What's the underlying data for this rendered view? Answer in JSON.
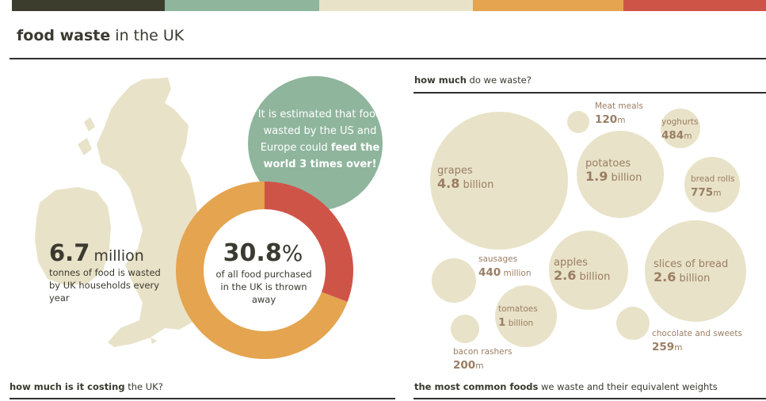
{
  "palette": {
    "top_bar": [
      "#3d3d2d",
      "#8fb59d",
      "#e8e2c8",
      "#e5a44f",
      "#cf5448"
    ],
    "map": "#e8e2c8",
    "bubble_green": "#8fb59d",
    "donut_orange": "#e5a44f",
    "donut_red": "#cf5448",
    "food_bubble": "#e8e2c8",
    "food_text": "#9a7e63"
  },
  "header": {
    "title_bold": "food waste",
    "title_rest": " in the UK"
  },
  "uk_stat": {
    "number": "6.7",
    "unit": "million",
    "text": "tonnes of food is wasted by UK households every year"
  },
  "us_europe_bubble": {
    "text_plain": "It is estimated that food wasted by the US and Europe could ",
    "text_bold": "feed the world 3 times over!"
  },
  "donut": {
    "percent_value": 30.8,
    "percent_number": "30.8",
    "percent_symbol": "%",
    "text": "of all food purchased in the UK is thrown away"
  },
  "how_much_header": {
    "bold": "how much",
    "rest": " do we waste?"
  },
  "foods": [
    {
      "name": "grapes",
      "value": "4.8",
      "unit": " billion"
    },
    {
      "name": "Meat meals",
      "value": "120",
      "unit": "m"
    },
    {
      "name": "potatoes",
      "value": "1.9",
      "unit": " billion"
    },
    {
      "name": "yoghurts",
      "value": "484",
      "unit": "m"
    },
    {
      "name": "bread rolls",
      "value": "775",
      "unit": "m"
    },
    {
      "name": "sausages",
      "value": "440",
      "unit": " million"
    },
    {
      "name": "apples",
      "value": "2.6",
      "unit": " billion"
    },
    {
      "name": "slices of bread",
      "value": "2.6",
      "unit": " billion"
    },
    {
      "name": "tomatoes",
      "value": "1",
      "unit": " billion"
    },
    {
      "name": "bacon rashers",
      "value": "200",
      "unit": "m"
    },
    {
      "name": "chocolate and sweets",
      "value": "259",
      "unit": "m"
    }
  ],
  "footer": {
    "left_bold": "how much is it costing",
    "left_rest": " the UK?",
    "right_bold": "the most common foods",
    "right_rest": " we waste and their equivalent weights"
  }
}
